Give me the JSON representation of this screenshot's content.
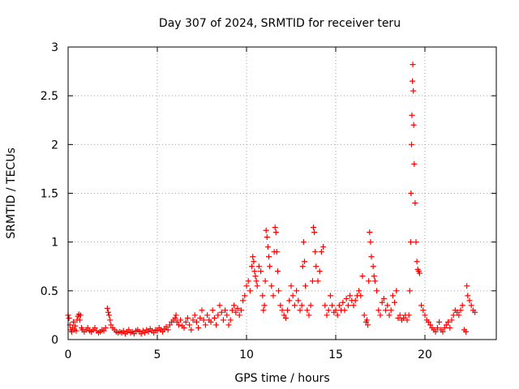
{
  "chart_data": {
    "type": "scatter",
    "title": "Day 307 of 2024, SRMTID for receiver teru",
    "xlabel": "GPS time / hours",
    "ylabel": "SRMTID / TECUs",
    "xlim": [
      0,
      24
    ],
    "ylim": [
      0,
      3
    ],
    "xticks": [
      0,
      5,
      10,
      15,
      20
    ],
    "xtick_labels": [
      "0",
      "5",
      "10",
      "15",
      "20"
    ],
    "yticks": [
      0,
      0.5,
      1,
      1.5,
      2,
      2.5,
      3
    ],
    "ytick_labels": [
      "0",
      "0.5",
      "1",
      "1.5",
      "2",
      "2.5",
      "3"
    ],
    "grid": true,
    "marker": "+",
    "color": "#ff0000",
    "series": [
      {
        "name": "SRMTID",
        "points": [
          [
            0.0,
            0.25
          ],
          [
            0.05,
            0.22
          ],
          [
            0.1,
            0.15
          ],
          [
            0.15,
            0.1
          ],
          [
            0.2,
            0.08
          ],
          [
            0.25,
            0.12
          ],
          [
            0.3,
            0.18
          ],
          [
            0.35,
            0.1
          ],
          [
            0.4,
            0.14
          ],
          [
            0.45,
            0.09
          ],
          [
            0.5,
            0.2
          ],
          [
            0.55,
            0.24
          ],
          [
            0.6,
            0.26
          ],
          [
            0.65,
            0.2
          ],
          [
            0.7,
            0.25
          ],
          [
            0.75,
            0.12
          ],
          [
            0.8,
            0.1
          ],
          [
            0.9,
            0.08
          ],
          [
            1.0,
            0.1
          ],
          [
            1.1,
            0.12
          ],
          [
            1.2,
            0.09
          ],
          [
            1.3,
            0.08
          ],
          [
            1.4,
            0.1
          ],
          [
            1.5,
            0.12
          ],
          [
            1.6,
            0.09
          ],
          [
            1.7,
            0.07
          ],
          [
            1.8,
            0.08
          ],
          [
            1.9,
            0.1
          ],
          [
            2.0,
            0.09
          ],
          [
            2.1,
            0.12
          ],
          [
            2.2,
            0.32
          ],
          [
            2.25,
            0.28
          ],
          [
            2.3,
            0.25
          ],
          [
            2.35,
            0.2
          ],
          [
            2.4,
            0.15
          ],
          [
            2.5,
            0.12
          ],
          [
            2.6,
            0.1
          ],
          [
            2.7,
            0.08
          ],
          [
            2.8,
            0.07
          ],
          [
            2.9,
            0.08
          ],
          [
            3.0,
            0.07
          ],
          [
            3.1,
            0.09
          ],
          [
            3.2,
            0.06
          ],
          [
            3.3,
            0.08
          ],
          [
            3.4,
            0.1
          ],
          [
            3.5,
            0.07
          ],
          [
            3.6,
            0.08
          ],
          [
            3.7,
            0.06
          ],
          [
            3.8,
            0.09
          ],
          [
            3.9,
            0.1
          ],
          [
            4.0,
            0.08
          ],
          [
            4.1,
            0.06
          ],
          [
            4.2,
            0.09
          ],
          [
            4.3,
            0.07
          ],
          [
            4.4,
            0.1
          ],
          [
            4.5,
            0.08
          ],
          [
            4.6,
            0.11
          ],
          [
            4.7,
            0.09
          ],
          [
            4.8,
            0.07
          ],
          [
            4.9,
            0.1
          ],
          [
            5.0,
            0.09
          ],
          [
            5.1,
            0.12
          ],
          [
            5.2,
            0.1
          ],
          [
            5.3,
            0.08
          ],
          [
            5.4,
            0.11
          ],
          [
            5.5,
            0.13
          ],
          [
            5.6,
            0.1
          ],
          [
            5.7,
            0.15
          ],
          [
            5.8,
            0.18
          ],
          [
            5.9,
            0.2
          ],
          [
            6.0,
            0.22
          ],
          [
            6.05,
            0.25
          ],
          [
            6.1,
            0.18
          ],
          [
            6.2,
            0.15
          ],
          [
            6.3,
            0.2
          ],
          [
            6.4,
            0.14
          ],
          [
            6.5,
            0.12
          ],
          [
            6.6,
            0.18
          ],
          [
            6.7,
            0.22
          ],
          [
            6.8,
            0.15
          ],
          [
            6.9,
            0.1
          ],
          [
            7.0,
            0.2
          ],
          [
            7.1,
            0.25
          ],
          [
            7.2,
            0.18
          ],
          [
            7.3,
            0.12
          ],
          [
            7.4,
            0.22
          ],
          [
            7.5,
            0.3
          ],
          [
            7.6,
            0.2
          ],
          [
            7.7,
            0.15
          ],
          [
            7.8,
            0.25
          ],
          [
            7.9,
            0.2
          ],
          [
            8.0,
            0.18
          ],
          [
            8.1,
            0.3
          ],
          [
            8.2,
            0.22
          ],
          [
            8.3,
            0.15
          ],
          [
            8.4,
            0.25
          ],
          [
            8.5,
            0.35
          ],
          [
            8.6,
            0.28
          ],
          [
            8.7,
            0.2
          ],
          [
            8.8,
            0.3
          ],
          [
            8.9,
            0.25
          ],
          [
            9.0,
            0.15
          ],
          [
            9.1,
            0.2
          ],
          [
            9.2,
            0.3
          ],
          [
            9.3,
            0.35
          ],
          [
            9.4,
            0.28
          ],
          [
            9.5,
            0.32
          ],
          [
            9.6,
            0.25
          ],
          [
            9.7,
            0.3
          ],
          [
            9.8,
            0.4
          ],
          [
            9.9,
            0.45
          ],
          [
            10.0,
            0.55
          ],
          [
            10.1,
            0.6
          ],
          [
            10.2,
            0.5
          ],
          [
            10.3,
            0.75
          ],
          [
            10.35,
            0.85
          ],
          [
            10.4,
            0.8
          ],
          [
            10.45,
            0.7
          ],
          [
            10.5,
            0.65
          ],
          [
            10.55,
            0.6
          ],
          [
            10.6,
            0.55
          ],
          [
            10.7,
            0.75
          ],
          [
            10.8,
            0.7
          ],
          [
            10.9,
            0.45
          ],
          [
            10.95,
            0.3
          ],
          [
            11.0,
            0.35
          ],
          [
            11.05,
            0.6
          ],
          [
            11.1,
            1.12
          ],
          [
            11.15,
            1.05
          ],
          [
            11.2,
            0.95
          ],
          [
            11.25,
            0.85
          ],
          [
            11.3,
            0.75
          ],
          [
            11.4,
            0.55
          ],
          [
            11.5,
            0.45
          ],
          [
            11.55,
            0.9
          ],
          [
            11.6,
            1.15
          ],
          [
            11.65,
            1.1
          ],
          [
            11.7,
            0.9
          ],
          [
            11.75,
            0.7
          ],
          [
            11.8,
            0.5
          ],
          [
            11.9,
            0.35
          ],
          [
            12.0,
            0.3
          ],
          [
            12.1,
            0.25
          ],
          [
            12.2,
            0.22
          ],
          [
            12.3,
            0.3
          ],
          [
            12.4,
            0.4
          ],
          [
            12.5,
            0.55
          ],
          [
            12.6,
            0.45
          ],
          [
            12.7,
            0.35
          ],
          [
            12.8,
            0.5
          ],
          [
            12.9,
            0.4
          ],
          [
            13.0,
            0.3
          ],
          [
            13.1,
            0.35
          ],
          [
            13.15,
            0.75
          ],
          [
            13.2,
            1.0
          ],
          [
            13.25,
            0.8
          ],
          [
            13.3,
            0.55
          ],
          [
            13.4,
            0.3
          ],
          [
            13.5,
            0.25
          ],
          [
            13.6,
            0.35
          ],
          [
            13.7,
            0.6
          ],
          [
            13.75,
            1.15
          ],
          [
            13.8,
            1.1
          ],
          [
            13.85,
            0.9
          ],
          [
            13.9,
            0.75
          ],
          [
            14.0,
            0.6
          ],
          [
            14.1,
            0.7
          ],
          [
            14.2,
            0.9
          ],
          [
            14.3,
            0.95
          ],
          [
            14.4,
            0.35
          ],
          [
            14.5,
            0.25
          ],
          [
            14.6,
            0.3
          ],
          [
            14.7,
            0.45
          ],
          [
            14.8,
            0.35
          ],
          [
            14.9,
            0.28
          ],
          [
            15.0,
            0.3
          ],
          [
            15.1,
            0.25
          ],
          [
            15.2,
            0.35
          ],
          [
            15.3,
            0.3
          ],
          [
            15.4,
            0.38
          ],
          [
            15.5,
            0.3
          ],
          [
            15.6,
            0.42
          ],
          [
            15.7,
            0.35
          ],
          [
            15.8,
            0.45
          ],
          [
            15.9,
            0.4
          ],
          [
            16.0,
            0.35
          ],
          [
            16.1,
            0.4
          ],
          [
            16.2,
            0.45
          ],
          [
            16.3,
            0.5
          ],
          [
            16.4,
            0.45
          ],
          [
            16.5,
            0.65
          ],
          [
            16.6,
            0.25
          ],
          [
            16.7,
            0.18
          ],
          [
            16.75,
            0.2
          ],
          [
            16.8,
            0.15
          ],
          [
            16.85,
            0.6
          ],
          [
            16.9,
            1.1
          ],
          [
            16.95,
            1.0
          ],
          [
            17.0,
            0.85
          ],
          [
            17.1,
            0.75
          ],
          [
            17.15,
            0.65
          ],
          [
            17.2,
            0.6
          ],
          [
            17.3,
            0.5
          ],
          [
            17.4,
            0.3
          ],
          [
            17.5,
            0.25
          ],
          [
            17.6,
            0.38
          ],
          [
            17.7,
            0.42
          ],
          [
            17.8,
            0.3
          ],
          [
            17.9,
            0.35
          ],
          [
            18.0,
            0.25
          ],
          [
            18.1,
            0.3
          ],
          [
            18.2,
            0.45
          ],
          [
            18.3,
            0.38
          ],
          [
            18.4,
            0.5
          ],
          [
            18.5,
            0.22
          ],
          [
            18.6,
            0.25
          ],
          [
            18.7,
            0.2
          ],
          [
            18.8,
            0.22
          ],
          [
            18.9,
            0.25
          ],
          [
            19.0,
            0.2
          ],
          [
            19.1,
            0.25
          ],
          [
            19.15,
            0.5
          ],
          [
            19.2,
            1.0
          ],
          [
            19.22,
            1.5
          ],
          [
            19.25,
            2.0
          ],
          [
            19.27,
            2.3
          ],
          [
            19.3,
            2.65
          ],
          [
            19.32,
            2.82
          ],
          [
            19.35,
            2.55
          ],
          [
            19.37,
            2.2
          ],
          [
            19.4,
            1.8
          ],
          [
            19.45,
            1.4
          ],
          [
            19.5,
            1.0
          ],
          [
            19.55,
            0.8
          ],
          [
            19.6,
            0.72
          ],
          [
            19.65,
            0.7
          ],
          [
            19.7,
            0.68
          ],
          [
            19.8,
            0.35
          ],
          [
            19.9,
            0.3
          ],
          [
            20.0,
            0.25
          ],
          [
            20.1,
            0.2
          ],
          [
            20.2,
            0.18
          ],
          [
            20.3,
            0.15
          ],
          [
            20.4,
            0.12
          ],
          [
            20.5,
            0.1
          ],
          [
            20.6,
            0.08
          ],
          [
            20.7,
            0.12
          ],
          [
            20.8,
            0.18
          ],
          [
            20.9,
            0.1
          ],
          [
            21.0,
            0.08
          ],
          [
            21.1,
            0.12
          ],
          [
            21.2,
            0.15
          ],
          [
            21.3,
            0.18
          ],
          [
            21.4,
            0.12
          ],
          [
            21.5,
            0.2
          ],
          [
            21.6,
            0.25
          ],
          [
            21.7,
            0.3
          ],
          [
            21.8,
            0.28
          ],
          [
            21.9,
            0.25
          ],
          [
            22.0,
            0.3
          ],
          [
            22.1,
            0.35
          ],
          [
            22.2,
            0.1
          ],
          [
            22.3,
            0.08
          ],
          [
            22.35,
            0.55
          ],
          [
            22.4,
            0.45
          ],
          [
            22.5,
            0.4
          ],
          [
            22.6,
            0.35
          ],
          [
            22.7,
            0.3
          ],
          [
            22.8,
            0.28
          ]
        ]
      }
    ]
  }
}
